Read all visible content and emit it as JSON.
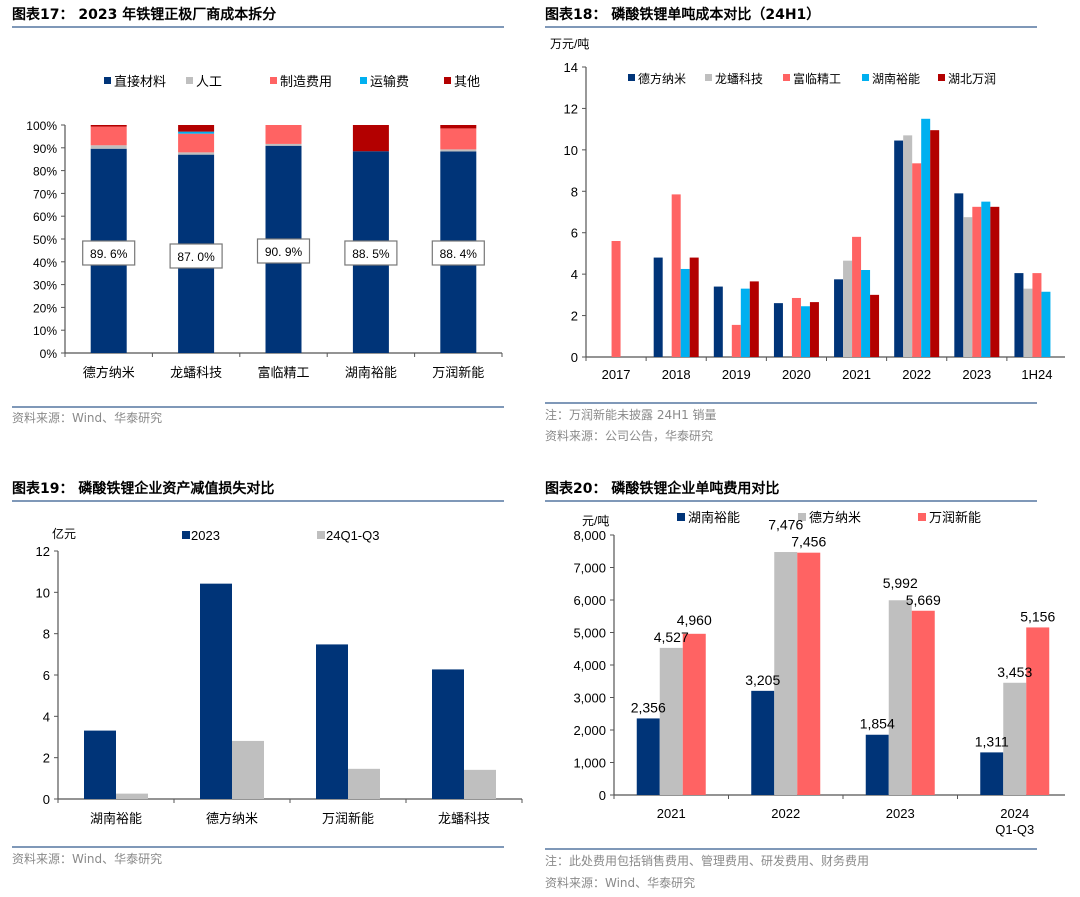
{
  "colors": {
    "navy": "#003478",
    "gray": "#bfbfbf",
    "salmon": "#ff6363",
    "sky": "#00b0f0",
    "darkred": "#b30000",
    "rule": "#7f98b8",
    "note": "#8a8a8a"
  },
  "chart_data": [
    {
      "id": "fig17",
      "type": "bar",
      "stacked": true,
      "title": "图表17： 2023 年铁锂正极厂商成本拆分",
      "categories": [
        "德方纳米",
        "龙蟠科技",
        "富临精工",
        "湖南裕能",
        "万润新能"
      ],
      "series": [
        {
          "name": "直接材料",
          "color": "#003478",
          "values": [
            89.6,
            87.0,
            90.9,
            88.5,
            88.4
          ]
        },
        {
          "name": "人工",
          "color": "#bfbfbf",
          "values": [
            1.5,
            1.0,
            0.8,
            0.0,
            0.9
          ]
        },
        {
          "name": "制造费用",
          "color": "#ff6363",
          "values": [
            8.2,
            8.2,
            8.3,
            0.0,
            9.2
          ]
        },
        {
          "name": "运输费",
          "color": "#00b0f0",
          "values": [
            0.0,
            0.9,
            0.0,
            0.0,
            0.0
          ]
        },
        {
          "name": "其他",
          "color": "#b30000",
          "values": [
            0.7,
            2.9,
            0.0,
            11.5,
            1.5
          ]
        }
      ],
      "data_labels": [
        "89. 6%",
        "87. 0%",
        "90. 9%",
        "88. 5%",
        "88. 4%"
      ],
      "yticks": [
        "0%",
        "10%",
        "20%",
        "30%",
        "40%",
        "50%",
        "60%",
        "70%",
        "80%",
        "90%",
        "100%"
      ],
      "ylim": [
        0,
        100
      ],
      "xlabel": "",
      "ylabel": "",
      "legend": "top",
      "notes": [
        "资料来源：Wind、华泰研究"
      ]
    },
    {
      "id": "fig18",
      "type": "bar",
      "title": "图表18： 磷酸铁锂单吨成本对比（24H1）",
      "unit": "万元/吨",
      "categories": [
        "2017",
        "2018",
        "2019",
        "2020",
        "2021",
        "2022",
        "2023",
        "1H24"
      ],
      "series": [
        {
          "name": "德方纳米",
          "color": "#003478",
          "values": [
            null,
            4.8,
            3.4,
            2.6,
            3.75,
            10.45,
            7.9,
            4.05
          ]
        },
        {
          "name": "龙蟠科技",
          "color": "#bfbfbf",
          "values": [
            null,
            null,
            null,
            null,
            4.65,
            10.7,
            6.75,
            3.3
          ]
        },
        {
          "name": "富临精工",
          "color": "#ff6363",
          "values": [
            5.6,
            7.85,
            1.55,
            2.85,
            5.8,
            9.35,
            7.25,
            4.05
          ]
        },
        {
          "name": "湖南裕能",
          "color": "#00b0f0",
          "values": [
            null,
            4.25,
            3.3,
            2.45,
            4.2,
            11.5,
            7.5,
            3.15
          ]
        },
        {
          "name": "湖北万润",
          "color": "#b30000",
          "values": [
            null,
            4.8,
            3.65,
            2.65,
            3.0,
            10.95,
            7.25,
            null
          ]
        }
      ],
      "yticks": [
        "0",
        "2",
        "4",
        "6",
        "8",
        "10",
        "12",
        "14"
      ],
      "ylim": [
        0,
        14
      ],
      "legend": "top",
      "notes": [
        "注：万润新能未披露 24H1 销量",
        "资料来源：公司公告，华泰研究"
      ]
    },
    {
      "id": "fig19",
      "type": "bar",
      "title": "图表19： 磷酸铁锂企业资产减值损失对比",
      "unit": "亿元",
      "categories": [
        "湖南裕能",
        "德方纳米",
        "万润新能",
        "龙蟠科技"
      ],
      "series": [
        {
          "name": "2023",
          "color": "#003478",
          "values": [
            3.31,
            10.42,
            7.48,
            6.27
          ]
        },
        {
          "name": "24Q1-Q3",
          "color": "#bfbfbf",
          "values": [
            0.26,
            2.81,
            1.46,
            1.41
          ]
        }
      ],
      "yticks": [
        "0",
        "2",
        "4",
        "6",
        "8",
        "10",
        "12"
      ],
      "ylim": [
        0,
        12
      ],
      "legend": "top",
      "notes": [
        "资料来源：Wind、华泰研究"
      ]
    },
    {
      "id": "fig20",
      "type": "bar",
      "title": "图表20： 磷酸铁锂企业单吨费用对比",
      "unit": "元/吨",
      "categories": [
        "2021",
        "2022",
        "2023",
        "2024\nQ1-Q3"
      ],
      "series": [
        {
          "name": "湖南裕能",
          "color": "#003478",
          "values": [
            2356,
            3205,
            1854,
            1311
          ],
          "labels": [
            "2,356",
            "3,205",
            "1,854",
            "1,311"
          ]
        },
        {
          "name": "德方纳米",
          "color": "#bfbfbf",
          "values": [
            4527,
            7476,
            5992,
            3453
          ],
          "labels": [
            "4,527",
            "7,476",
            "5,992",
            "3,453"
          ]
        },
        {
          "name": "万润新能",
          "color": "#ff6363",
          "values": [
            4960,
            7456,
            5669,
            5156
          ],
          "labels": [
            "4,960",
            "7,456",
            "5,669",
            "5,156"
          ]
        }
      ],
      "yticks": [
        "0",
        "1,000",
        "2,000",
        "3,000",
        "4,000",
        "5,000",
        "6,000",
        "7,000",
        "8,000"
      ],
      "ylim": [
        0,
        8000
      ],
      "legend": "top",
      "notes": [
        "注：此处费用包括销售费用、管理费用、研发费用、财务费用",
        "资料来源：Wind、华泰研究"
      ]
    }
  ]
}
